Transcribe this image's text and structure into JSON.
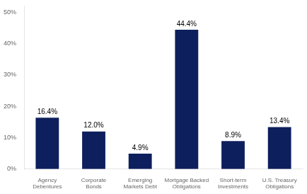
{
  "chart_data": {
    "type": "bar",
    "categories": [
      "Agency\nDebentures",
      "Corporate\nBonds",
      "Emerging\nMarkets Debt",
      "Mortgage Backed\nObligations",
      "Short-term\nInvestments",
      "U.S. Treasury\nObligations"
    ],
    "values": [
      16.4,
      12.0,
      4.9,
      44.4,
      8.9,
      13.4
    ],
    "value_labels": [
      "16.4%",
      "12.0%",
      "4.9%",
      "44.4%",
      "8.9%",
      "13.4%"
    ],
    "data_labels": true,
    "color": "#0d1f5c",
    "ylim": [
      0,
      52
    ],
    "yticks": [
      {
        "value": 0,
        "label": "0%"
      },
      {
        "value": 10,
        "label": "10%"
      },
      {
        "value": 20,
        "label": "20%"
      },
      {
        "value": 30,
        "label": "30%"
      },
      {
        "value": 40,
        "label": "40%"
      },
      {
        "value": 50,
        "label": "50%"
      }
    ],
    "grid": false
  }
}
